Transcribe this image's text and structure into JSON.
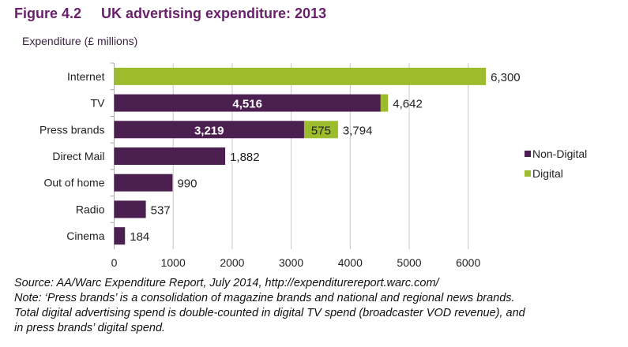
{
  "figure_number": "Figure 4.2",
  "title": "UK advertising expenditure: 2013",
  "chart_data": {
    "type": "bar",
    "orientation": "horizontal",
    "stacked": true,
    "ylabel": "Expenditure (£ millions)",
    "categories": [
      "Internet",
      "TV",
      "Press brands",
      "Direct Mail",
      "Out of home",
      "Radio",
      "Cinema"
    ],
    "series": [
      {
        "name": "Non-Digital",
        "color": "#4b1f50",
        "values": [
          0,
          4516,
          3219,
          1882,
          990,
          537,
          184
        ]
      },
      {
        "name": "Digital",
        "color": "#9cbb2d",
        "values": [
          6300,
          126,
          575,
          0,
          0,
          0,
          0
        ]
      }
    ],
    "segment_labels": [
      {
        "category": "TV",
        "series": "Non-Digital",
        "text": "4,516"
      },
      {
        "category": "Press brands",
        "series": "Non-Digital",
        "text": "3,219"
      },
      {
        "category": "Press brands",
        "series": "Digital",
        "text": "575"
      }
    ],
    "total_labels": [
      "6,300",
      "4,642",
      "3,794",
      "1,882",
      "990",
      "537",
      "184"
    ],
    "xlim": [
      0,
      6300
    ],
    "xticks": [
      0,
      1000,
      2000,
      3000,
      4000,
      5000,
      6000
    ],
    "grid": "vertical",
    "legend": "right"
  },
  "notes": [
    "Source: AA/Warc Expenditure Report, July 2014, http://expenditurereport.warc.com/",
    "Note: ‘Press brands’ is a consolidation of magazine brands and national and regional news brands.",
    "Total digital advertising spend is double-counted in digital TV spend (broadcaster VOD revenue), and",
    "in press brands’ digital spend."
  ]
}
